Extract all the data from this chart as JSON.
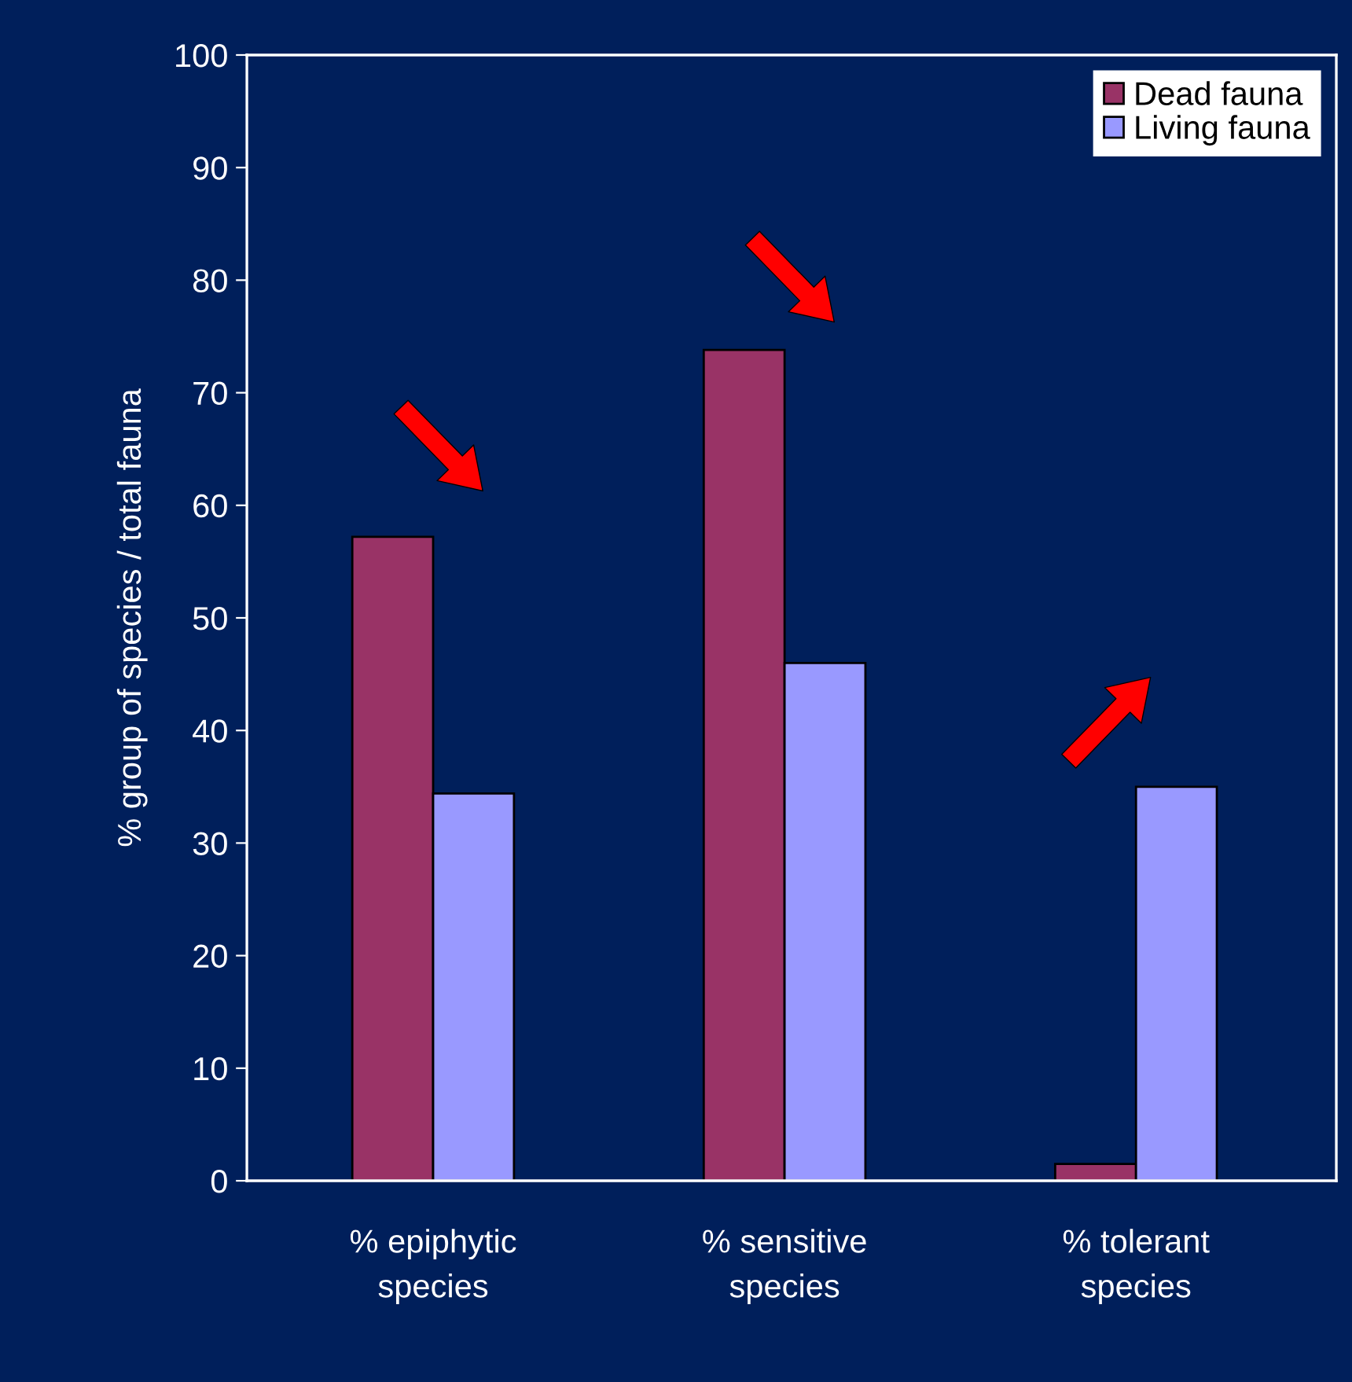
{
  "chart_data": {
    "type": "bar",
    "ylabel": "% group of species / total fauna",
    "categories": [
      "% epiphytic\nspecies",
      "% sensitive\nspecies",
      "% tolerant\nspecies"
    ],
    "series": [
      {
        "name": "Dead fauna",
        "color": "#993366",
        "values": [
          57.2,
          73.8,
          1.5
        ]
      },
      {
        "name": "Living fauna",
        "color": "#9999ff",
        "values": [
          34.4,
          46.0,
          35.0
        ]
      }
    ],
    "ylim": [
      0,
      100
    ],
    "yticks": [
      0,
      10,
      20,
      30,
      40,
      50,
      60,
      70,
      80,
      90,
      100
    ],
    "grid": false,
    "legend": "top right"
  }
}
